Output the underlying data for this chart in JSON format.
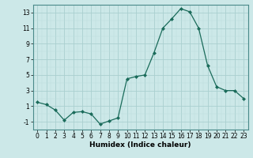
{
  "x": [
    0,
    1,
    2,
    3,
    4,
    5,
    6,
    7,
    8,
    9,
    10,
    11,
    12,
    13,
    14,
    15,
    16,
    17,
    18,
    19,
    20,
    21,
    22,
    23
  ],
  "y": [
    1.5,
    1.2,
    0.5,
    -0.8,
    0.2,
    0.3,
    0.0,
    -1.3,
    -0.9,
    -0.5,
    4.5,
    4.8,
    5.0,
    7.8,
    11.0,
    12.2,
    13.5,
    13.1,
    11.0,
    6.2,
    3.5,
    3.0,
    3.0,
    2.0
  ],
  "line_color": "#1a6b5a",
  "marker": "D",
  "marker_size": 2,
  "bg_color": "#cce8e8",
  "grid_major_color": "#aacfcf",
  "grid_minor_color": "#bbdddd",
  "xlabel": "Humidex (Indice chaleur)",
  "xlim": [
    -0.5,
    23.5
  ],
  "ylim": [
    -2.0,
    14.0
  ],
  "yticks": [
    -1,
    1,
    3,
    5,
    7,
    9,
    11,
    13
  ],
  "xticks": [
    0,
    1,
    2,
    3,
    4,
    5,
    6,
    7,
    8,
    9,
    10,
    11,
    12,
    13,
    14,
    15,
    16,
    17,
    18,
    19,
    20,
    21,
    22,
    23
  ],
  "label_fontsize": 6.5,
  "tick_fontsize": 5.5
}
